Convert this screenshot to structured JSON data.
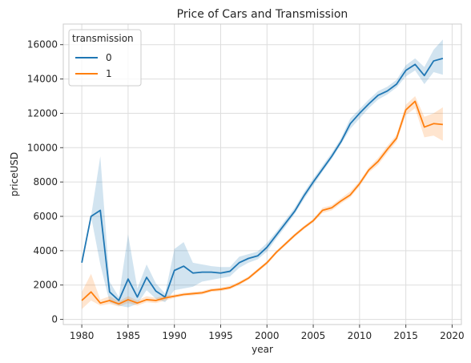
{
  "chart_data": {
    "type": "line",
    "title": "Price of Cars and Transmission",
    "xlabel": "year",
    "ylabel": "priceUSD",
    "xlim": [
      1978,
      2021
    ],
    "ylim": [
      -300,
      17200
    ],
    "xticks": [
      1980,
      1985,
      1990,
      1995,
      2000,
      2005,
      2010,
      2015,
      2020
    ],
    "yticks": [
      0,
      2000,
      4000,
      6000,
      8000,
      10000,
      12000,
      14000,
      16000
    ],
    "grid": true,
    "legend": {
      "title": "transmission",
      "placement": "top-left"
    },
    "x": [
      1980,
      1981,
      1982,
      1983,
      1984,
      1985,
      1986,
      1987,
      1988,
      1989,
      1990,
      1991,
      1992,
      1993,
      1994,
      1995,
      1996,
      1997,
      1998,
      1999,
      2000,
      2001,
      2002,
      2003,
      2004,
      2005,
      2006,
      2007,
      2008,
      2009,
      2010,
      2011,
      2012,
      2013,
      2014,
      2015,
      2016,
      2017,
      2018,
      2019
    ],
    "series": [
      {
        "name": "0",
        "color": "#1f77b4",
        "values": [
          3300,
          6000,
          6350,
          1600,
          1100,
          2350,
          1300,
          2450,
          1650,
          1300,
          2850,
          3100,
          2700,
          2750,
          2750,
          2700,
          2800,
          3300,
          3550,
          3700,
          4200,
          4900,
          5600,
          6300,
          7200,
          8000,
          8750,
          9500,
          10350,
          11400,
          12000,
          12550,
          13050,
          13300,
          13700,
          14500,
          14850,
          14200,
          15050,
          15200
        ],
        "ci_low": [
          3300,
          6000,
          3200,
          1000,
          800,
          700,
          900,
          1700,
          1200,
          1000,
          1700,
          1800,
          1900,
          2200,
          2300,
          2400,
          2500,
          3000,
          3300,
          3500,
          3950,
          4700,
          5400,
          6150,
          7000,
          7800,
          8600,
          9350,
          10200,
          11100,
          11700,
          12300,
          12800,
          13100,
          13500,
          14150,
          14500,
          13700,
          14400,
          14250
        ],
        "ci_high": [
          3300,
          6000,
          9500,
          2200,
          1300,
          4950,
          1800,
          3200,
          2100,
          1500,
          4100,
          4500,
          3300,
          3200,
          3100,
          3050,
          3050,
          3650,
          3800,
          3950,
          4450,
          5100,
          5800,
          6500,
          7400,
          8200,
          8950,
          9700,
          10550,
          11700,
          12250,
          12800,
          13300,
          13550,
          13950,
          14800,
          15200,
          14700,
          15700,
          16300
        ]
      },
      {
        "name": "1",
        "color": "#ff7f0e",
        "values": [
          1100,
          1600,
          950,
          1100,
          900,
          1150,
          950,
          1150,
          1100,
          1250,
          1350,
          1450,
          1500,
          1550,
          1700,
          1750,
          1850,
          2100,
          2400,
          2850,
          3300,
          3900,
          4400,
          4900,
          5350,
          5750,
          6350,
          6500,
          6900,
          7250,
          7900,
          8700,
          9200,
          9900,
          10550,
          12200,
          12700,
          11200,
          11400,
          11350
        ],
        "ci_low": [
          600,
          1100,
          800,
          900,
          750,
          950,
          800,
          1000,
          950,
          1100,
          1250,
          1350,
          1400,
          1450,
          1600,
          1650,
          1750,
          2000,
          2300,
          2750,
          3200,
          3800,
          4300,
          4800,
          5250,
          5650,
          6200,
          6350,
          6750,
          7100,
          7750,
          8550,
          9000,
          9700,
          10350,
          11900,
          12300,
          10600,
          10700,
          10400
        ],
        "ci_high": [
          1600,
          2650,
          1150,
          1350,
          1050,
          1350,
          1100,
          1350,
          1250,
          1400,
          1450,
          1550,
          1600,
          1650,
          1800,
          1850,
          1950,
          2200,
          2500,
          2950,
          3400,
          4000,
          4500,
          5000,
          5450,
          5850,
          6500,
          6650,
          7050,
          7450,
          8050,
          8850,
          9400,
          10100,
          10750,
          12500,
          13000,
          11800,
          12000,
          12350
        ]
      }
    ]
  }
}
